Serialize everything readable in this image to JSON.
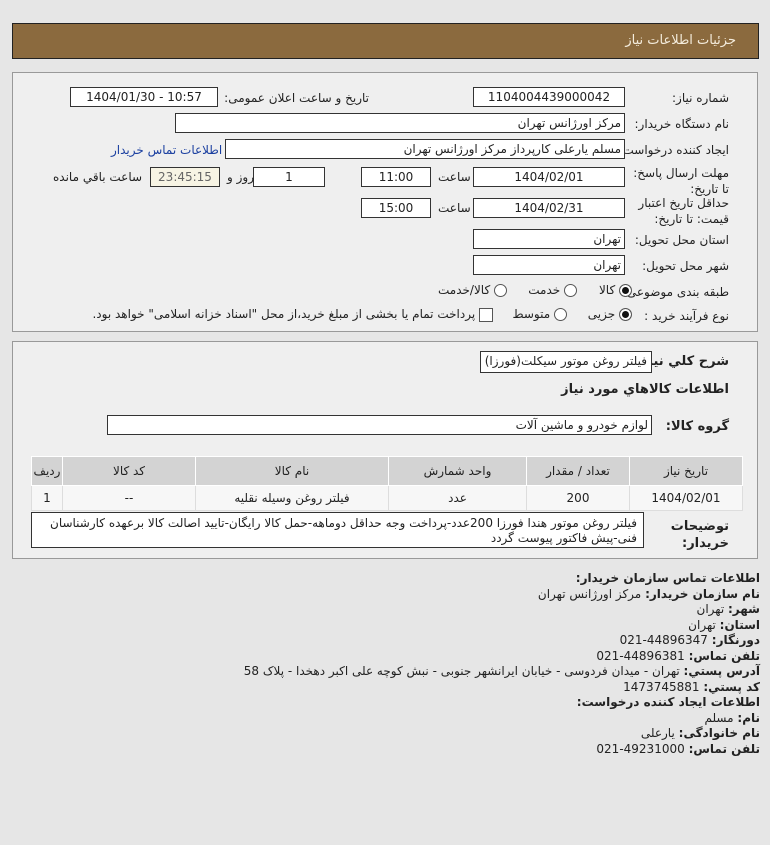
{
  "header": {
    "title": "جزئیات اطلاعات نیاز"
  },
  "form": {
    "need_number_label": "شماره نیاز:",
    "need_number": "1104004439000042",
    "announce_label": "تاریخ و ساعت اعلان عمومی:",
    "announce_value": "1404/01/30 - 10:57",
    "buyer_org_label": "نام دستگاه خریدار:",
    "buyer_org": "مرکز اورژانس تهران",
    "creator_label": "ایجاد کننده درخواست:",
    "creator": "مسلم یارعلی کارپرداز مرکز اورژانس تهران",
    "contact_link": "اطلاعات تماس خریدار",
    "deadline_label": "مهلت ارسال پاسخ: تا تاریخ:",
    "deadline_date": "1404/02/01",
    "time_label": "ساعت",
    "deadline_time": "11:00",
    "days": "1",
    "days_label": "روز و",
    "remaining": "23:45:15",
    "remaining_label": "ساعت باقي مانده",
    "validity_label": "حداقل تاریخ اعتبار قیمت: تا تاریخ:",
    "validity_date": "1404/02/31",
    "validity_time": "15:00",
    "province_label": "استان محل تحویل:",
    "province": "تهران",
    "city_label": "شهر محل تحویل:",
    "city": "تهران",
    "category_label": "طبقه بندی موضوعی:",
    "category_options": [
      "کالا",
      "خدمت",
      "کالا/خدمت"
    ],
    "process_label": "نوع فرآیند خرید :",
    "process_options": [
      "جزیی",
      "متوسط"
    ],
    "payment_note": "پرداخت تمام یا بخشی از مبلغ خرید،از محل \"اسناد خزانه اسلامی\" خواهد بود."
  },
  "summary": {
    "desc_label": "شرح کلي نیاز:",
    "desc": "فیلتر روغن موتور سیکلت(فورزا)",
    "goods_title": "اطلاعات کالاهاي مورد نیاز",
    "group_label": "گروه کالا:",
    "group": "لوازم خودرو و ماشین آلات",
    "table": {
      "headers": [
        "ردیف",
        "کد کالا",
        "نام کالا",
        "واحد شمارش",
        "تعداد / مقدار",
        "تاریخ نیاز"
      ],
      "rows": [
        [
          "1",
          "--",
          "فیلتر روغن وسیله نقلیه",
          "عدد",
          "200",
          "1404/02/01"
        ]
      ]
    },
    "notes_label": "توضیحات خریدار:",
    "notes": "فیلتر روغن موتور هندا فورزا 200عدد-پرداخت وجه حداقل دوماهه-حمل کالا رایگان-تایید اصالت کالا برعهده کارشناسان فنی-پیش فاکتور پیوست گردد"
  },
  "contact": {
    "title": "اطلاعات تماس سازمان خریدار:",
    "org_label": "نام سازمان خریدار:",
    "org": "مرکز اورژانس تهران",
    "city_label": "شهر:",
    "city": "تهران",
    "province_label": "استان:",
    "province": "تهران",
    "fax_label": "دورنگار:",
    "fax": "44896347-021",
    "phone_label": "تلفن تماس:",
    "phone": "44896381-021",
    "address_label": "آدرس پستي:",
    "address": "تهران - میدان فردوسی - خیابان ایرانشهر جنوبی - نبش کوچه علی اکبر دهخدا - پلاک 58",
    "postal_label": "کد پستي:",
    "postal": "1473745881",
    "creator_title": "اطلاعات ایجاد کننده درخواست:",
    "name_label": "نام:",
    "name": "مسلم",
    "family_label": "نام خانوادگی:",
    "family": "یارعلی",
    "creator_phone_label": "تلفن تماس:",
    "creator_phone": "49231000-021"
  }
}
